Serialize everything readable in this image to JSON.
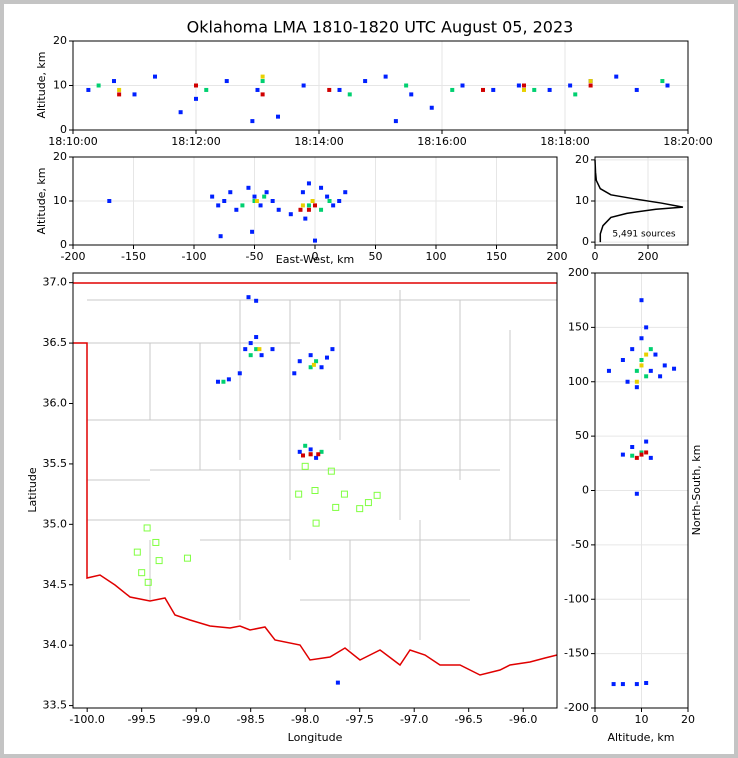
{
  "chart_data": [
    {
      "type": "scatter",
      "title": "Oklahoma LMA 1810-1820 UTC August 05, 2023",
      "ylabel": "Altitude, km",
      "xlim": [
        "18:10:00",
        "18:20:00"
      ],
      "xticks": [
        "18:10:00",
        "18:12:00",
        "18:14:00",
        "18:16:00",
        "18:18:00",
        "18:20:00"
      ],
      "ylim": [
        0,
        20
      ],
      "yticks": [
        0,
        10,
        20
      ],
      "grid": true,
      "series": [
        {
          "color": "#0020ff",
          "x": [
            "18:10:15",
            "18:10:40",
            "18:11:00",
            "18:11:20",
            "18:11:45",
            "18:12:00",
            "18:12:30",
            "18:13:00",
            "18:13:20",
            "18:13:45",
            "18:14:20",
            "18:14:45",
            "18:15:05",
            "18:15:30",
            "18:15:50",
            "18:16:20",
            "18:16:50",
            "18:17:15",
            "18:17:45",
            "18:18:05",
            "18:18:25",
            "18:18:50",
            "18:19:10",
            "18:19:40",
            "18:12:55",
            "18:15:15"
          ],
          "y": [
            9,
            11,
            8,
            12,
            4,
            7,
            11,
            9,
            3,
            10,
            9,
            11,
            12,
            8,
            5,
            10,
            9,
            10,
            9,
            10,
            11,
            12,
            9,
            10,
            2,
            2
          ]
        },
        {
          "color": "#00d070",
          "x": [
            "18:10:25",
            "18:12:10",
            "18:13:05",
            "18:14:30",
            "18:15:25",
            "18:16:10",
            "18:17:30",
            "18:18:10",
            "18:19:35"
          ],
          "y": [
            10,
            9,
            11,
            8,
            10,
            9,
            9,
            8,
            11
          ]
        },
        {
          "color": "#e8d000",
          "x": [
            "18:10:45",
            "18:13:05",
            "18:17:20",
            "18:18:25"
          ],
          "y": [
            9,
            12,
            9,
            11
          ]
        },
        {
          "color": "#d00000",
          "x": [
            "18:10:45",
            "18:12:00",
            "18:13:05",
            "18:14:10",
            "18:16:40",
            "18:17:20",
            "18:18:25"
          ],
          "y": [
            8,
            10,
            8,
            9,
            9,
            10,
            10
          ]
        }
      ]
    },
    {
      "type": "scatter",
      "xlabel": "East-West, km",
      "ylabel": "Altitude, km",
      "xlim": [
        -200,
        200
      ],
      "xticks": [
        -200,
        -150,
        -100,
        -50,
        0,
        50,
        100,
        150,
        200
      ],
      "ylim": [
        0,
        20
      ],
      "yticks": [
        0,
        10,
        20
      ],
      "grid": true,
      "series": [
        {
          "color": "#0020ff",
          "x": [
            -85,
            -80,
            -75,
            -70,
            -65,
            -55,
            -50,
            -45,
            -40,
            -35,
            -30,
            -20,
            -10,
            -5,
            5,
            10,
            15,
            20,
            25,
            -170,
            -78,
            -52,
            0,
            -8
          ],
          "y": [
            11,
            9,
            10,
            12,
            8,
            13,
            11,
            9,
            12,
            10,
            8,
            7,
            12,
            14,
            13,
            11,
            9,
            10,
            12,
            10,
            2,
            3,
            1,
            6
          ]
        },
        {
          "color": "#00d070",
          "x": [
            -50,
            -42,
            -5,
            5,
            12,
            -60
          ],
          "y": [
            10,
            11,
            9,
            8,
            10,
            9
          ]
        },
        {
          "color": "#e8d000",
          "x": [
            -48,
            -2,
            -10
          ],
          "y": [
            10,
            10,
            9
          ]
        },
        {
          "color": "#d00000",
          "x": [
            0,
            -5,
            -12
          ],
          "y": [
            9,
            8,
            8
          ]
        }
      ]
    },
    {
      "type": "line",
      "annotation": "5,491 sources",
      "xlim": [
        0,
        351
      ],
      "xticks": [
        0,
        200
      ],
      "ylim": [
        -0.7,
        20.7
      ],
      "yticks": [
        0,
        10,
        20
      ],
      "grid": true,
      "color": "#000000",
      "x": [
        20,
        20,
        30,
        60,
        120,
        230,
        332,
        250,
        150,
        60,
        20,
        5,
        2,
        0
      ],
      "y": [
        0,
        2,
        4,
        6,
        7,
        8,
        8.5,
        9.5,
        10.5,
        11.5,
        13,
        15,
        17,
        20
      ]
    },
    {
      "type": "scatter",
      "xlabel": "Longitude",
      "ylabel": "Latitude",
      "xlim": [
        -100.13,
        -95.69
      ],
      "ylim": [
        33.48,
        37.08
      ],
      "grid": false,
      "xticks": [
        {
          "value": -100,
          "label": "-100.0"
        },
        -99.5,
        {
          "value": -99,
          "label": "-99.0"
        },
        -98.5,
        {
          "value": -98,
          "label": "-98.0"
        },
        -97.5,
        {
          "value": -97,
          "label": "-97.0"
        },
        -96.5,
        {
          "value": -96,
          "label": "-96.0"
        }
      ],
      "yticks": [
        33.5,
        {
          "value": 34,
          "label": "34.0"
        },
        34.5,
        {
          "value": 35,
          "label": "35.0"
        },
        35.5,
        {
          "value": 36,
          "label": "36.0"
        },
        36.5,
        {
          "value": 37,
          "label": "37.0"
        }
      ],
      "series": [
        {
          "color": "#0020ff",
          "x": [
            -98.5,
            -98.4,
            -98.55,
            -98.3,
            -98.45,
            -98.05,
            -97.95,
            -97.85,
            -97.8,
            -98.8,
            -98.7,
            -98.6,
            -98.52,
            -98.45,
            -97.95,
            -97.9,
            -98.05,
            -97.7,
            -98.1,
            -97.75
          ],
          "y": [
            36.5,
            36.4,
            36.45,
            36.45,
            36.55,
            36.35,
            36.4,
            36.3,
            36.38,
            36.18,
            36.2,
            36.25,
            36.88,
            36.85,
            35.62,
            35.55,
            35.6,
            33.69,
            36.25,
            36.45
          ]
        },
        {
          "color": "#00d070",
          "x": [
            -98.45,
            -98.5,
            -97.95,
            -97.9,
            -98.75,
            -98.0,
            -97.85
          ],
          "y": [
            36.45,
            36.4,
            36.3,
            36.35,
            36.18,
            35.65,
            35.6
          ]
        },
        {
          "color": "#e8d000",
          "x": [
            -98.42,
            -97.92,
            -97.95
          ],
          "y": [
            36.45,
            36.32,
            35.58
          ]
        },
        {
          "color": "#d00000",
          "x": [
            -97.95,
            -98.02,
            -97.88
          ],
          "y": [
            35.58,
            35.57,
            35.58
          ]
        },
        {
          "color": "#80ff40",
          "marker": "square",
          "x": [
            -98.0,
            -97.76,
            -98.06,
            -97.91,
            -97.64,
            -97.34,
            -97.72,
            -97.5,
            -97.42,
            -97.9,
            -99.45,
            -99.37,
            -99.54,
            -99.34,
            -99.08,
            -99.5,
            -99.44
          ],
          "y": [
            35.48,
            35.44,
            35.25,
            35.28,
            35.25,
            35.24,
            35.14,
            35.13,
            35.18,
            35.01,
            34.97,
            34.85,
            34.77,
            34.7,
            34.72,
            34.6,
            34.52
          ]
        }
      ]
    },
    {
      "type": "scatter",
      "xlabel": "Altitude, km",
      "ylabel": "North-South, km",
      "xlim": [
        0,
        20
      ],
      "xticks": [
        0,
        10,
        20
      ],
      "ylim": [
        -200,
        200
      ],
      "yticks": [
        -200,
        -150,
        -100,
        -50,
        0,
        50,
        100,
        150,
        200
      ],
      "grid": true,
      "series": [
        {
          "color": "#0020ff",
          "x": [
            8,
            10,
            12,
            7,
            13,
            9,
            6,
            11,
            14,
            10,
            6,
            8,
            12,
            11,
            9,
            6,
            9,
            11,
            4,
            15,
            17,
            3
          ],
          "y": [
            130,
            140,
            110,
            100,
            125,
            95,
            120,
            150,
            105,
            175,
            33,
            40,
            30,
            45,
            -3,
            -178,
            -178,
            -177,
            -178,
            115,
            112,
            110
          ]
        },
        {
          "color": "#00d070",
          "x": [
            10,
            11,
            12,
            9,
            10,
            8
          ],
          "y": [
            120,
            105,
            130,
            110,
            35,
            32
          ]
        },
        {
          "color": "#e8d000",
          "x": [
            10,
            11,
            9
          ],
          "y": [
            115,
            125,
            100
          ]
        },
        {
          "color": "#d00000",
          "x": [
            10,
            9,
            11
          ],
          "y": [
            33,
            30,
            35
          ]
        }
      ]
    }
  ]
}
